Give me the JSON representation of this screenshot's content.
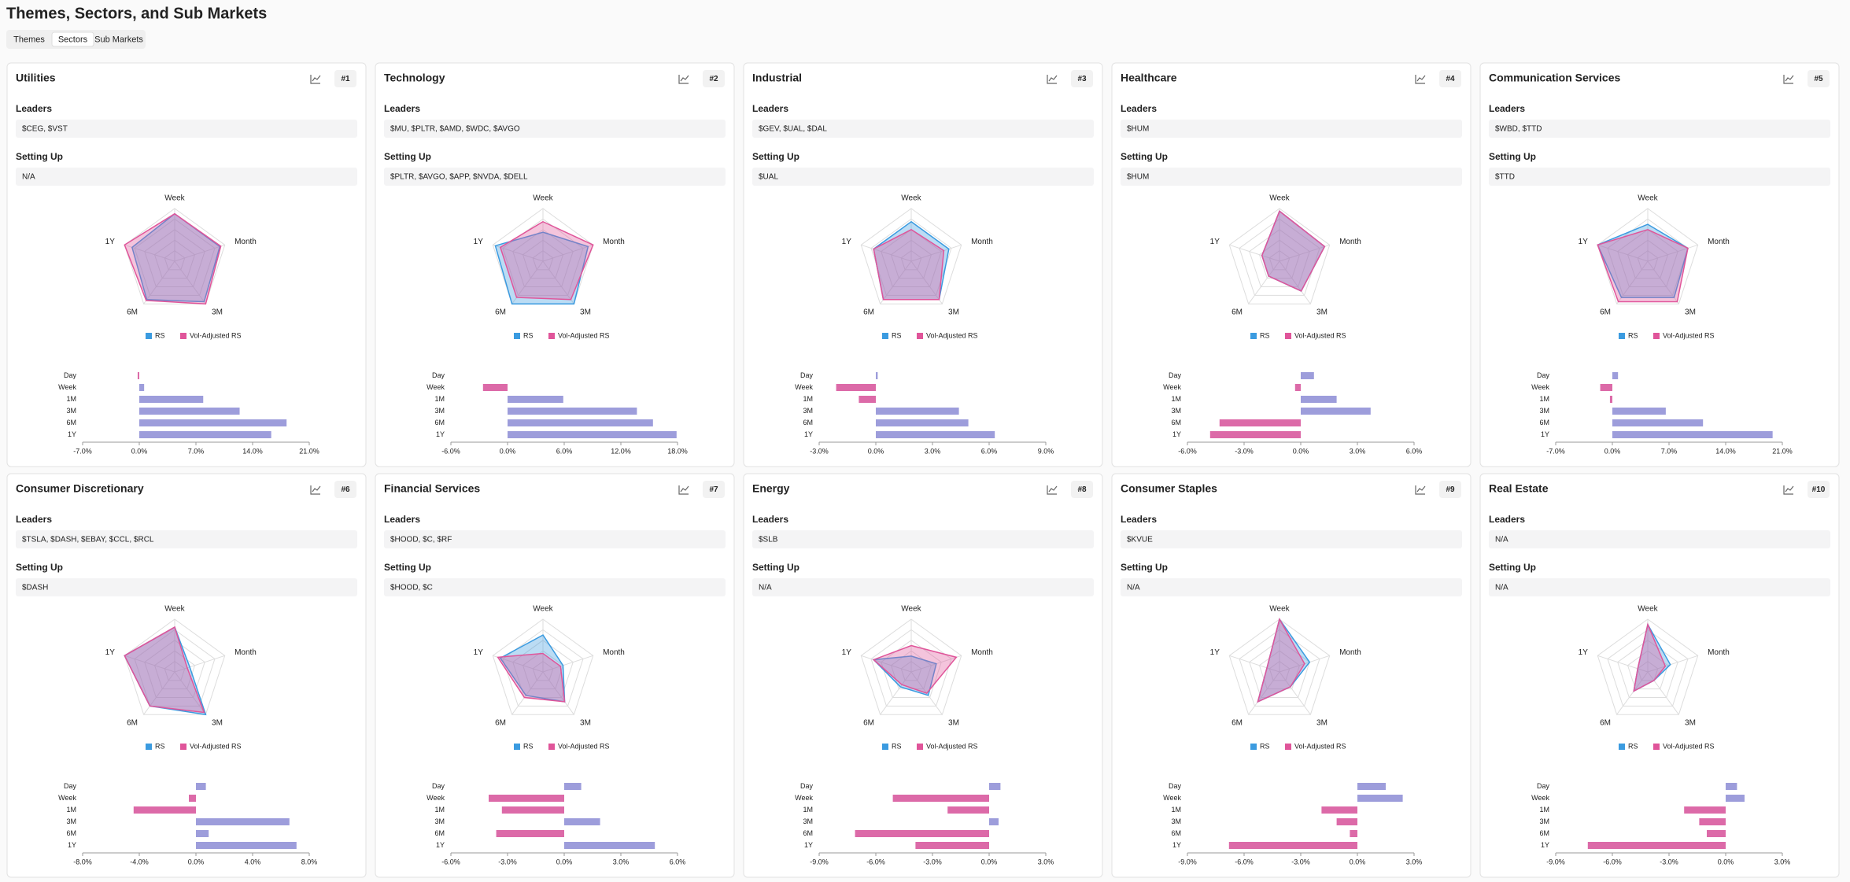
{
  "header": {
    "title": "Themes, Sectors, and Sub Markets"
  },
  "tabs": [
    "Themes",
    "Sectors",
    "Sub Markets"
  ],
  "active_tab_index": 1,
  "labels": {
    "leaders": "Leaders",
    "setting_up": "Setting Up"
  },
  "cards": [
    {
      "title": "Utilities",
      "rank": "#1",
      "leaders": "$CEG, $VST",
      "setting_up": "N/A",
      "chart_data": [
        {
          "type": "radar",
          "axes": [
            "Week",
            "Month",
            "3M",
            "6M",
            "1Y"
          ],
          "rlim": [
            0,
            100
          ],
          "series": [
            {
              "name": "RS",
              "color": "#3b9be0",
              "values": [
                90,
                90,
                95,
                90,
                85
              ]
            },
            {
              "name": "Vol-Adjusted RS",
              "color": "#e0559a",
              "values": [
                90,
                92,
                100,
                92,
                100
              ]
            }
          ]
        },
        {
          "type": "bar",
          "orientation": "horizontal",
          "categories": [
            "Day",
            "Week",
            "1M",
            "3M",
            "6M",
            "1Y"
          ],
          "values": [
            -0.2,
            0.6,
            7.9,
            12.4,
            18.2,
            16.3
          ],
          "xlim": [
            -7,
            21
          ],
          "xticks": [
            {
              "value": -7,
              "label": "-7.0%"
            },
            {
              "value": 0,
              "label": "0.0%"
            },
            {
              "value": 7,
              "label": "7.0%"
            },
            {
              "value": 14,
              "label": "14.0%"
            },
            {
              "value": 21,
              "label": "21.0%"
            }
          ],
          "positive_color": "#9d9ddb",
          "negative_color": "#dc6aa8"
        }
      ]
    },
    {
      "title": "Technology",
      "rank": "#2",
      "leaders": "$MU, $PLTR, $AMD, $WDC, $AVGO",
      "setting_up": "$PLTR, $AVGO, $APP, $NVDA, $DELL",
      "chart_data": [
        {
          "type": "radar",
          "axes": [
            "Week",
            "Month",
            "3M",
            "6M",
            "1Y"
          ],
          "rlim": [
            0,
            100
          ],
          "series": [
            {
              "name": "RS",
              "color": "#3b9be0",
              "values": [
                55,
                90,
                100,
                100,
                95
              ]
            },
            {
              "name": "Vol-Adjusted RS",
              "color": "#e0559a",
              "values": [
                75,
                100,
                90,
                85,
                85
              ]
            }
          ]
        },
        {
          "type": "bar",
          "orientation": "horizontal",
          "categories": [
            "Day",
            "Week",
            "1M",
            "3M",
            "6M",
            "1Y"
          ],
          "values": [
            0,
            -2.6,
            5.9,
            13.7,
            15.4,
            17.9
          ],
          "xlim": [
            -6,
            18
          ],
          "xticks": [
            {
              "value": -6,
              "label": "-6.0%"
            },
            {
              "value": 0,
              "label": "0.0%"
            },
            {
              "value": 6,
              "label": "6.0%"
            },
            {
              "value": 12,
              "label": "12.0%"
            },
            {
              "value": 18,
              "label": "18.0%"
            }
          ],
          "positive_color": "#9d9ddb",
          "negative_color": "#dc6aa8"
        }
      ]
    },
    {
      "title": "Industrial",
      "rank": "#3",
      "leaders": "$GEV, $UAL, $DAL",
      "setting_up": "$UAL",
      "chart_data": [
        {
          "type": "radar",
          "axes": [
            "Week",
            "Month",
            "3M",
            "6M",
            "1Y"
          ],
          "rlim": [
            0,
            100
          ],
          "series": [
            {
              "name": "RS",
              "color": "#3b9be0",
              "values": [
                75,
                75,
                90,
                90,
                75
              ]
            },
            {
              "name": "Vol-Adjusted RS",
              "color": "#e0559a",
              "values": [
                60,
                65,
                90,
                90,
                75
              ]
            }
          ]
        },
        {
          "type": "bar",
          "orientation": "horizontal",
          "categories": [
            "Day",
            "Week",
            "1M",
            "3M",
            "6M",
            "1Y"
          ],
          "values": [
            0.1,
            -2.1,
            -0.9,
            4.4,
            4.9,
            6.3
          ],
          "xlim": [
            -3,
            9
          ],
          "xticks": [
            {
              "value": -3,
              "label": "-3.0%"
            },
            {
              "value": 0,
              "label": "0.0%"
            },
            {
              "value": 3,
              "label": "3.0%"
            },
            {
              "value": 6,
              "label": "6.0%"
            },
            {
              "value": 9,
              "label": "9.0%"
            }
          ],
          "positive_color": "#9d9ddb",
          "negative_color": "#dc6aa8"
        }
      ]
    },
    {
      "title": "Healthcare",
      "rank": "#4",
      "leaders": "$HUM",
      "setting_up": "$HUM",
      "chart_data": [
        {
          "type": "radar",
          "axes": [
            "Week",
            "Month",
            "3M",
            "6M",
            "1Y"
          ],
          "rlim": [
            0,
            100
          ],
          "series": [
            {
              "name": "RS",
              "color": "#3b9be0",
              "values": [
                95,
                90,
                70,
                35,
                35
              ]
            },
            {
              "name": "Vol-Adjusted RS",
              "color": "#e0559a",
              "values": [
                95,
                90,
                70,
                35,
                35
              ]
            }
          ]
        },
        {
          "type": "bar",
          "orientation": "horizontal",
          "categories": [
            "Day",
            "Week",
            "1M",
            "3M",
            "6M",
            "1Y"
          ],
          "values": [
            0.7,
            -0.3,
            1.9,
            3.7,
            -4.3,
            -4.8
          ],
          "xlim": [
            -6,
            6
          ],
          "xticks": [
            {
              "value": -6,
              "label": "-6.0%"
            },
            {
              "value": -3,
              "label": "-3.0%"
            },
            {
              "value": 0,
              "label": "0.0%"
            },
            {
              "value": 3,
              "label": "3.0%"
            },
            {
              "value": 6,
              "label": "6.0%"
            }
          ],
          "positive_color": "#9d9ddb",
          "negative_color": "#dc6aa8"
        }
      ]
    },
    {
      "title": "Communication Services",
      "rank": "#5",
      "leaders": "$WBD, $TTD",
      "setting_up": "$TTD",
      "chart_data": [
        {
          "type": "radar",
          "axes": [
            "Week",
            "Month",
            "3M",
            "6M",
            "1Y"
          ],
          "rlim": [
            0,
            100
          ],
          "series": [
            {
              "name": "RS",
              "color": "#3b9be0",
              "values": [
                70,
                80,
                85,
                85,
                100
              ]
            },
            {
              "name": "Vol-Adjusted RS",
              "color": "#e0559a",
              "values": [
                60,
                80,
                95,
                95,
                100
              ]
            }
          ]
        },
        {
          "type": "bar",
          "orientation": "horizontal",
          "categories": [
            "Day",
            "Week",
            "1M",
            "3M",
            "6M",
            "1Y"
          ],
          "values": [
            0.7,
            -1.5,
            -0.3,
            6.6,
            11.2,
            19.8
          ],
          "xlim": [
            -7,
            21
          ],
          "xticks": [
            {
              "value": -7,
              "label": "-7.0%"
            },
            {
              "value": 0,
              "label": "0.0%"
            },
            {
              "value": 7,
              "label": "7.0%"
            },
            {
              "value": 14,
              "label": "14.0%"
            },
            {
              "value": 21,
              "label": "21.0%"
            }
          ],
          "positive_color": "#9d9ddb",
          "negative_color": "#dc6aa8"
        }
      ]
    },
    {
      "title": "Consumer Discretionary",
      "rank": "#6",
      "leaders": "$TSLA, $DASH, $EBAY, $CCL, $RCL",
      "setting_up": "$DASH",
      "chart_data": [
        {
          "type": "radar",
          "axes": [
            "Week",
            "Month",
            "3M",
            "6M",
            "1Y"
          ],
          "rlim": [
            0,
            100
          ],
          "series": [
            {
              "name": "RS",
              "color": "#3b9be0",
              "values": [
                85,
                30,
                100,
                80,
                100
              ]
            },
            {
              "name": "Vol-Adjusted RS",
              "color": "#e0559a",
              "values": [
                85,
                25,
                95,
                80,
                100
              ]
            }
          ]
        },
        {
          "type": "bar",
          "orientation": "horizontal",
          "categories": [
            "Day",
            "Week",
            "1M",
            "3M",
            "6M",
            "1Y"
          ],
          "values": [
            0.7,
            -0.5,
            -4.4,
            6.6,
            0.9,
            7.1
          ],
          "xlim": [
            -8,
            8
          ],
          "xticks": [
            {
              "value": -8,
              "label": "-8.0%"
            },
            {
              "value": -4,
              "label": "-4.0%"
            },
            {
              "value": 0,
              "label": "0.0%"
            },
            {
              "value": 4,
              "label": "4.0%"
            },
            {
              "value": 8,
              "label": "8.0%"
            }
          ],
          "positive_color": "#9d9ddb",
          "negative_color": "#dc6aa8"
        }
      ]
    },
    {
      "title": "Financial Services",
      "rank": "#7",
      "leaders": "$HOOD, $C, $RF",
      "setting_up": "$HOOD, $C",
      "chart_data": [
        {
          "type": "radar",
          "axes": [
            "Week",
            "Month",
            "3M",
            "6M",
            "1Y"
          ],
          "rlim": [
            0,
            100
          ],
          "series": [
            {
              "name": "RS",
              "color": "#3b9be0",
              "values": [
                70,
                40,
                70,
                55,
                85
              ]
            },
            {
              "name": "Vol-Adjusted RS",
              "color": "#e0559a",
              "values": [
                35,
                35,
                70,
                60,
                90
              ]
            }
          ]
        },
        {
          "type": "bar",
          "orientation": "horizontal",
          "categories": [
            "Day",
            "Week",
            "1M",
            "3M",
            "6M",
            "1Y"
          ],
          "values": [
            0.9,
            -4.0,
            -3.3,
            1.9,
            -3.6,
            4.8
          ],
          "xlim": [
            -6,
            6
          ],
          "xticks": [
            {
              "value": -6,
              "label": "-6.0%"
            },
            {
              "value": -3,
              "label": "-3.0%"
            },
            {
              "value": 0,
              "label": "0.0%"
            },
            {
              "value": 3,
              "label": "3.0%"
            },
            {
              "value": 6,
              "label": "6.0%"
            }
          ],
          "positive_color": "#9d9ddb",
          "negative_color": "#dc6aa8"
        }
      ]
    },
    {
      "title": "Energy",
      "rank": "#8",
      "leaders": "$SLB",
      "setting_up": "N/A",
      "chart_data": [
        {
          "type": "radar",
          "axes": [
            "Week",
            "Month",
            "3M",
            "6M",
            "1Y"
          ],
          "rlim": [
            0,
            100
          ],
          "series": [
            {
              "name": "RS",
              "color": "#3b9be0",
              "values": [
                30,
                50,
                55,
                35,
                75
              ]
            },
            {
              "name": "Vol-Adjusted RS",
              "color": "#e0559a",
              "values": [
                50,
                90,
                50,
                30,
                75
              ]
            }
          ]
        },
        {
          "type": "bar",
          "orientation": "horizontal",
          "categories": [
            "Day",
            "Week",
            "1M",
            "3M",
            "6M",
            "1Y"
          ],
          "values": [
            0.6,
            -5.1,
            -2.2,
            0.5,
            -7.1,
            -3.9
          ],
          "xlim": [
            -9,
            3
          ],
          "xticks": [
            {
              "value": -9,
              "label": "-9.0%"
            },
            {
              "value": -6,
              "label": "-6.0%"
            },
            {
              "value": -3,
              "label": "-3.0%"
            },
            {
              "value": 0,
              "label": "0.0%"
            },
            {
              "value": 3,
              "label": "3.0%"
            }
          ],
          "positive_color": "#9d9ddb",
          "negative_color": "#dc6aa8"
        }
      ]
    },
    {
      "title": "Consumer Staples",
      "rank": "#9",
      "leaders": "$KVUE",
      "setting_up": "N/A",
      "chart_data": [
        {
          "type": "radar",
          "axes": [
            "Week",
            "Month",
            "3M",
            "6M",
            "1Y"
          ],
          "rlim": [
            0,
            100
          ],
          "series": [
            {
              "name": "RS",
              "color": "#3b9be0",
              "values": [
                100,
                60,
                35,
                70,
                25
              ]
            },
            {
              "name": "Vol-Adjusted RS",
              "color": "#e0559a",
              "values": [
                100,
                50,
                35,
                70,
                25
              ]
            }
          ]
        },
        {
          "type": "bar",
          "orientation": "horizontal",
          "categories": [
            "Day",
            "Week",
            "1M",
            "3M",
            "6M",
            "1Y"
          ],
          "values": [
            1.5,
            2.4,
            -1.9,
            -1.1,
            -0.4,
            -6.8
          ],
          "xlim": [
            -9,
            3
          ],
          "xticks": [
            {
              "value": -9,
              "label": "-9.0%"
            },
            {
              "value": -6,
              "label": "-6.0%"
            },
            {
              "value": -3,
              "label": "-3.0%"
            },
            {
              "value": 0,
              "label": "0.0%"
            },
            {
              "value": 3,
              "label": "3.0%"
            }
          ],
          "positive_color": "#9d9ddb",
          "negative_color": "#dc6aa8"
        }
      ]
    },
    {
      "title": "Real Estate",
      "rank": "#10",
      "leaders": "N/A",
      "setting_up": "N/A",
      "chart_data": [
        {
          "type": "radar",
          "axes": [
            "Week",
            "Month",
            "3M",
            "6M",
            "1Y"
          ],
          "rlim": [
            0,
            100
          ],
          "series": [
            {
              "name": "RS",
              "color": "#3b9be0",
              "values": [
                90,
                45,
                20,
                45,
                20
              ]
            },
            {
              "name": "Vol-Adjusted RS",
              "color": "#e0559a",
              "values": [
                90,
                35,
                20,
                45,
                20
              ]
            }
          ]
        },
        {
          "type": "bar",
          "orientation": "horizontal",
          "categories": [
            "Day",
            "Week",
            "1M",
            "3M",
            "6M",
            "1Y"
          ],
          "values": [
            0.6,
            1.0,
            -2.2,
            -1.4,
            -1.0,
            -7.3
          ],
          "xlim": [
            -9,
            3
          ],
          "xticks": [
            {
              "value": -9,
              "label": "-9.0%"
            },
            {
              "value": -6,
              "label": "-6.0%"
            },
            {
              "value": -3,
              "label": "-3.0%"
            },
            {
              "value": 0,
              "label": "0.0%"
            },
            {
              "value": 3,
              "label": "3.0%"
            }
          ],
          "positive_color": "#9d9ddb",
          "negative_color": "#dc6aa8"
        }
      ]
    }
  ]
}
